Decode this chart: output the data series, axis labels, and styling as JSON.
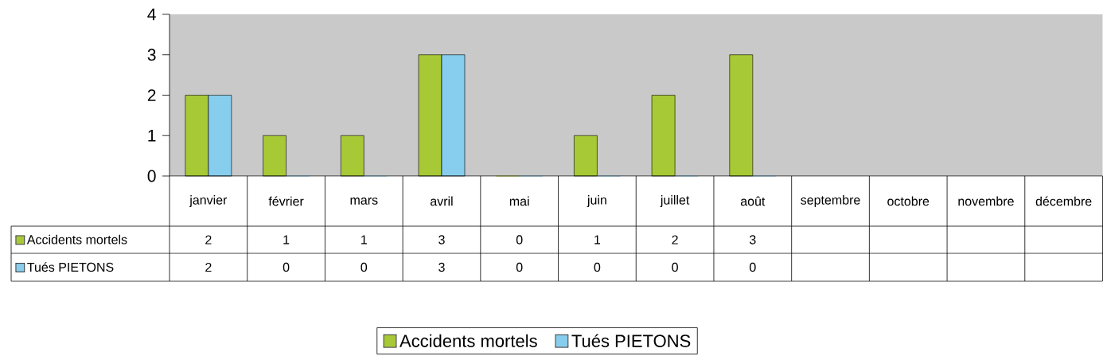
{
  "chart_data": {
    "type": "bar",
    "categories": [
      "janvier",
      "février",
      "mars",
      "avril",
      "mai",
      "juin",
      "juillet",
      "août",
      "septembre",
      "octobre",
      "novembre",
      "décembre"
    ],
    "series": [
      {
        "name": "Accidents mortels",
        "color": "#a8c936",
        "values": [
          2,
          1,
          1,
          3,
          0,
          1,
          2,
          3,
          null,
          null,
          null,
          null
        ]
      },
      {
        "name": "Tués PIETONS",
        "color": "#87cded",
        "values": [
          2,
          0,
          0,
          3,
          0,
          0,
          0,
          0,
          null,
          null,
          null,
          null
        ]
      }
    ],
    "ylim": [
      0,
      4
    ],
    "yticks": [
      0,
      1,
      2,
      3,
      4
    ],
    "data_labels": true,
    "legend": "bottom"
  }
}
